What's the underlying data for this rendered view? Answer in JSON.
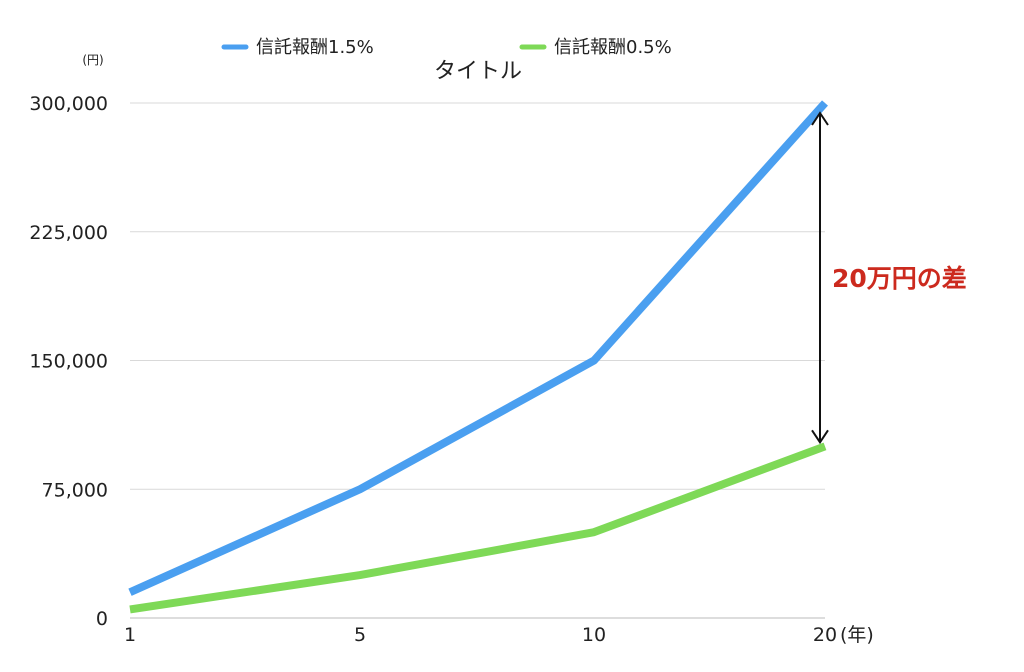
{
  "chart_data": {
    "type": "line",
    "title": "タイトル",
    "ylabel_unit": "(円)",
    "xlabel_unit": "(年)",
    "categories": [
      "1",
      "5",
      "10",
      "20"
    ],
    "x": [
      1,
      5,
      10,
      20
    ],
    "ylim": [
      0,
      300000
    ],
    "yticks": [
      0,
      75000,
      150000,
      225000,
      300000
    ],
    "ytick_labels": [
      "0",
      "75,000",
      "150,000",
      "225,000",
      "300,000"
    ],
    "grid": true,
    "legend_position": "top",
    "series": [
      {
        "name": "信託報酬1.5%",
        "color": "#4a9ff0",
        "values": [
          15000,
          75000,
          150000,
          300000
        ]
      },
      {
        "name": "信託報酬0.5%",
        "color": "#7ed957",
        "values": [
          5000,
          25000,
          50000,
          100000
        ]
      }
    ],
    "annotation": {
      "text": "20万円の差",
      "color": "#cc2a1e",
      "from_value": 100000,
      "to_value": 300000,
      "at_category": "20"
    }
  }
}
